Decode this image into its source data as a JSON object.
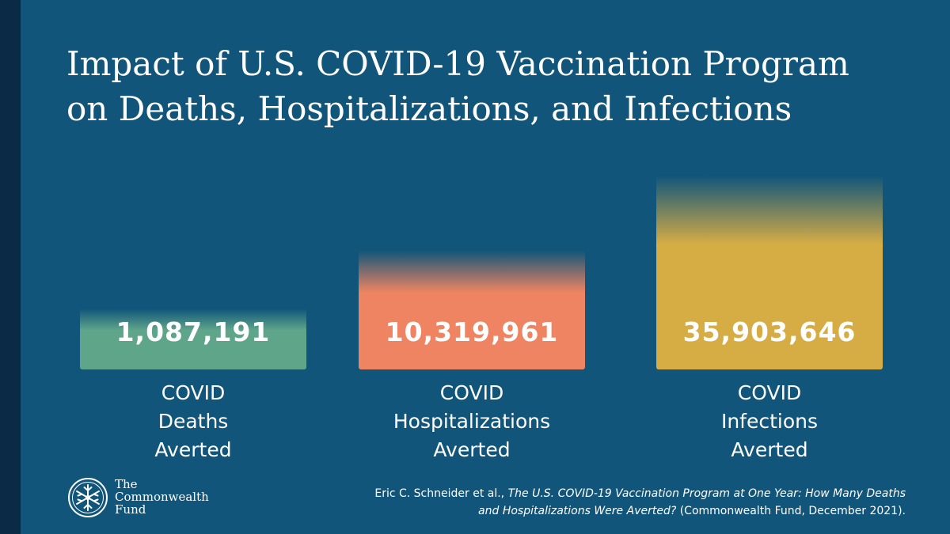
{
  "title": {
    "line1": "Impact of U.S. COVID-19 Vaccination Program",
    "line2": "on Deaths, Hospitalizations, and Infections"
  },
  "chart_data": {
    "type": "bar",
    "title": "Impact of U.S. COVID-19 Vaccination Program on Deaths, Hospitalizations, and Infections",
    "categories": [
      [
        "COVID",
        "Deaths",
        "Averted"
      ],
      [
        "COVID",
        "Hospitalizations",
        "Averted"
      ],
      [
        "COVID",
        "Infections",
        "Averted"
      ]
    ],
    "values": [
      1087191,
      10319961,
      35903646
    ],
    "value_labels": [
      "1,087,191",
      "10,319,961",
      "35,903,646"
    ],
    "colors": [
      "#5fa58a",
      "#ee8461",
      "#d6ad45"
    ],
    "xlabel": "",
    "ylabel": "",
    "grid": false
  },
  "logo": {
    "line1": "The",
    "line2": "Commonwealth",
    "line3": "Fund"
  },
  "citation": {
    "author": "Eric C. Schneider et al., ",
    "title_part1": "The U.S. COVID-19 Vaccination Program at One Year: How Many Deaths",
    "title_part2": "and Hospitalizations Were Averted?",
    "suffix": " (Commonwealth Fund, December 2021)."
  }
}
